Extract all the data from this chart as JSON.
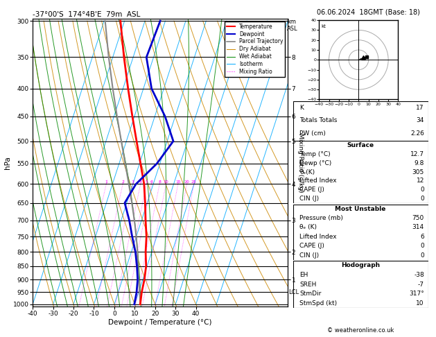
{
  "title_left": "-37°00'S  174°4B'E  79m  ASL",
  "title_right": "06.06.2024  18GMT (Base: 18)",
  "xlabel": "Dewpoint / Temperature (°C)",
  "ylabel_left": "hPa",
  "pressure_levels": [
    300,
    350,
    400,
    450,
    500,
    550,
    600,
    650,
    700,
    750,
    800,
    850,
    900,
    950,
    1000
  ],
  "temp_range": [
    -40,
    40
  ],
  "skew_factor": 45,
  "temp_profile": {
    "pressure": [
      1000,
      950,
      900,
      850,
      800,
      750,
      700,
      650,
      600,
      550,
      500,
      450,
      400,
      350,
      300
    ],
    "temperature": [
      12.7,
      11.5,
      10.8,
      9.5,
      7.0,
      5.0,
      2.0,
      -1.0,
      -4.5,
      -9.5,
      -15.0,
      -21.0,
      -27.5,
      -34.5,
      -42.0
    ]
  },
  "dewpoint_profile": {
    "pressure": [
      1000,
      950,
      900,
      850,
      800,
      750,
      700,
      650,
      600,
      550,
      500,
      450,
      400,
      350,
      300
    ],
    "dewpoint": [
      9.8,
      9.0,
      7.5,
      5.0,
      2.0,
      -2.0,
      -6.0,
      -11.0,
      -8.5,
      -1.5,
      3.0,
      -5.0,
      -16.0,
      -23.5,
      -22.5
    ]
  },
  "parcel_profile": {
    "pressure": [
      1000,
      950,
      900,
      850,
      800,
      750,
      700,
      650,
      600,
      550,
      500,
      450,
      400,
      350,
      300
    ],
    "temperature": [
      12.7,
      10.5,
      8.0,
      5.5,
      3.0,
      0.0,
      -3.5,
      -7.5,
      -12.0,
      -17.0,
      -22.5,
      -28.5,
      -35.0,
      -42.0,
      -49.5
    ]
  },
  "mixing_ratios": [
    1,
    2,
    3,
    4,
    5,
    6,
    8,
    10,
    15,
    20,
    25
  ],
  "mixing_ratio_labels": [
    "1",
    "2",
    "3",
    "4",
    "5",
    "6",
    "8",
    "10",
    "15",
    "20",
    "25"
  ],
  "km_asl_ticks": [
    1,
    2,
    3,
    4,
    5,
    6,
    7,
    8
  ],
  "km_asl_pressures": [
    900,
    800,
    700,
    600,
    500,
    450,
    400,
    350
  ],
  "surface_data": {
    "Temp (°C)": "12.7",
    "Dewp (°C)": "9.8",
    "θe(K)": "305",
    "Lifted Index": "12",
    "CAPE (J)": "0",
    "CIN (J)": "0"
  },
  "most_unstable": {
    "Pressure (mb)": "750",
    "θe (K)": "314",
    "Lifted Index": "6",
    "CAPE (J)": "0",
    "CIN (J)": "0"
  },
  "indices": {
    "K": "17",
    "Totals Totals": "34",
    "PW (cm)": "2.26"
  },
  "hodograph_data": {
    "EH": "-38",
    "SREH": "-7",
    "StmDir": "317°",
    "StmSpd (kt)": "10"
  },
  "colors": {
    "temperature": "#ff0000",
    "dewpoint": "#0000cc",
    "parcel": "#888888",
    "dry_adiabat": "#cc8800",
    "wet_adiabat": "#008800",
    "isotherm": "#00aaff",
    "mixing_ratio": "#ff00ff",
    "background": "#ffffff",
    "text": "#000000"
  },
  "copyright": "© weatheronline.co.uk"
}
